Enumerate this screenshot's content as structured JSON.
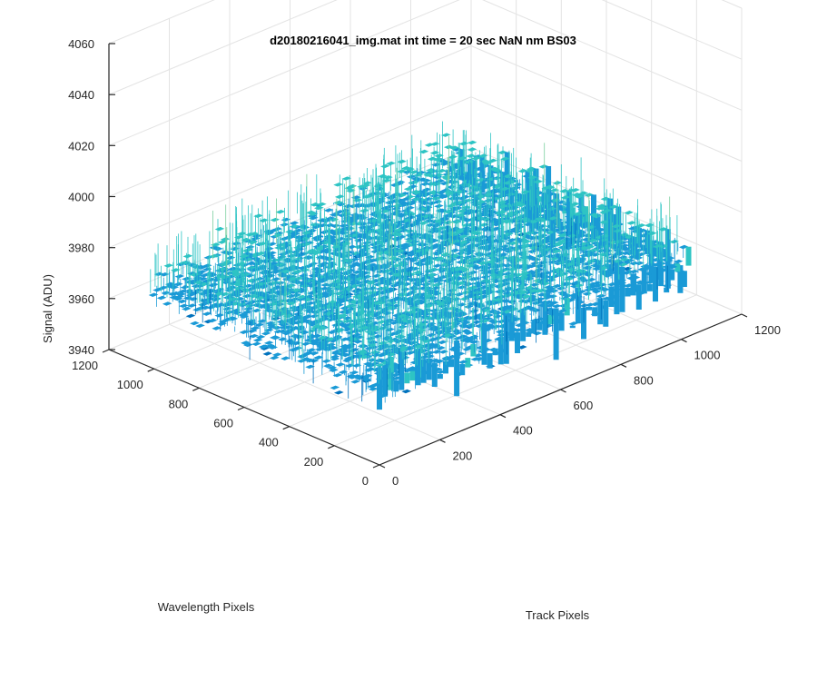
{
  "chart_data": {
    "type": "surface",
    "title": "d20180216041_img.mat int time = 20 sec  NaN nm BS03",
    "xlabel": "Track Pixels",
    "ylabel": "Wavelength Pixels",
    "zlabel": "Signal (ADU)",
    "xlim": [
      0,
      1200
    ],
    "ylim": [
      0,
      1200
    ],
    "zlim": [
      3940,
      4060
    ],
    "x_ticks": [
      "0",
      "200",
      "400",
      "600",
      "800",
      "1000",
      "1200"
    ],
    "y_ticks": [
      "0",
      "200",
      "400",
      "600",
      "800",
      "1000",
      "1200"
    ],
    "z_ticks": [
      "3940",
      "3960",
      "3980",
      "4000",
      "4020",
      "4040",
      "4060"
    ],
    "data_extent": {
      "x": [
        0,
        1024
      ],
      "y": [
        0,
        1024
      ]
    },
    "surface": {
      "mean": 3972,
      "noise_range": [
        3945,
        4025
      ]
    },
    "colormap": [
      "#0072bd",
      "#1a9ad6",
      "#2ec4c4",
      "#7ccfa0",
      "#c8d26a"
    ],
    "grid": true
  }
}
